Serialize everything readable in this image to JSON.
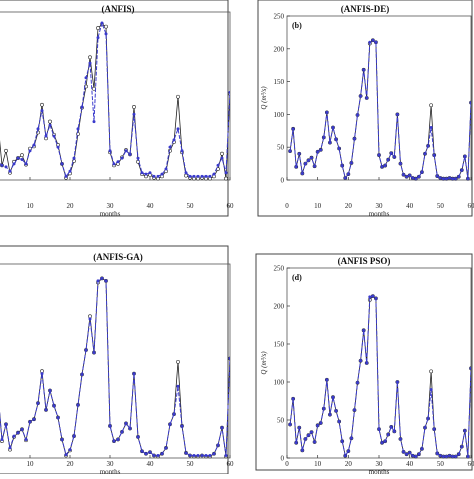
{
  "chart_data": [
    {
      "type": "line",
      "title": "(ANFIS)",
      "panel_label": "",
      "ylabel": "",
      "xlabel": "months",
      "xticks": [
        "10",
        "20",
        "30",
        "40",
        "50",
        "60"
      ],
      "yticks": [],
      "xlim": [
        0,
        60
      ],
      "ylim": [
        0,
        230
      ],
      "colors": {
        "observed": "#222222",
        "model": "#3a3acc"
      },
      "series": [
        {
          "role": "observed",
          "x": [
            1,
            2,
            3,
            4,
            5,
            6,
            7,
            8,
            9,
            10,
            11,
            12,
            13,
            14,
            15,
            16,
            17,
            18,
            19,
            20,
            21,
            22,
            23,
            24,
            25,
            26,
            27,
            28,
            29,
            30,
            31,
            32,
            33,
            34,
            35,
            36,
            37,
            38,
            39,
            40,
            41,
            42,
            43,
            44,
            45,
            46,
            47,
            48,
            49,
            50,
            51,
            52,
            53,
            54,
            55,
            56,
            57,
            58,
            59,
            60
          ],
          "y": [
            44,
            78,
            20,
            40,
            10,
            25,
            30,
            34,
            21,
            43,
            46,
            65,
            103,
            57,
            80,
            62,
            48,
            22,
            3,
            9,
            26,
            63,
            99,
            128,
            168,
            125,
            208,
            213,
            210,
            38,
            20,
            22,
            31,
            41,
            35,
            100,
            25,
            8,
            5,
            7,
            3,
            2,
            5,
            12,
            40,
            52,
            114,
            38,
            6,
            3,
            2,
            2,
            3,
            2,
            2,
            5,
            15,
            36,
            2,
            118
          ]
        },
        {
          "role": "model",
          "x": [
            1,
            2,
            3,
            4,
            5,
            6,
            7,
            8,
            9,
            10,
            11,
            12,
            13,
            14,
            15,
            16,
            17,
            18,
            19,
            20,
            21,
            22,
            23,
            24,
            25,
            26,
            27,
            28,
            29,
            30,
            31,
            32,
            33,
            34,
            35,
            36,
            37,
            38,
            39,
            40,
            41,
            42,
            43,
            44,
            45,
            46,
            47,
            48,
            49,
            50,
            51,
            52,
            53,
            54,
            55,
            56,
            57,
            58,
            59,
            60
          ],
          "y": [
            15,
            25,
            20,
            18,
            12,
            22,
            30,
            28,
            22,
            40,
            48,
            70,
            95,
            60,
            75,
            60,
            45,
            22,
            5,
            12,
            30,
            70,
            100,
            140,
            160,
            80,
            195,
            215,
            200,
            40,
            22,
            25,
            30,
            40,
            35,
            90,
            30,
            10,
            8,
            10,
            5,
            5,
            8,
            15,
            45,
            55,
            70,
            40,
            10,
            5,
            5,
            5,
            5,
            5,
            5,
            8,
            20,
            30,
            10,
            120
          ]
        }
      ]
    },
    {
      "type": "line",
      "title": "(ANFIS-DE)",
      "panel_label": "(b)",
      "ylabel": "Q (m³/s)",
      "xlabel": "months",
      "xticks": [
        "0",
        "10",
        "20",
        "30",
        "40",
        "50",
        "60"
      ],
      "yticks": [
        "0",
        "50",
        "100",
        "150",
        "200",
        "250"
      ],
      "xlim": [
        0,
        60
      ],
      "ylim": [
        0,
        250
      ],
      "colors": {
        "observed": "#222222",
        "model": "#3a3acc"
      },
      "series": [
        {
          "role": "observed",
          "x": [
            1,
            2,
            3,
            4,
            5,
            6,
            7,
            8,
            9,
            10,
            11,
            12,
            13,
            14,
            15,
            16,
            17,
            18,
            19,
            20,
            21,
            22,
            23,
            24,
            25,
            26,
            27,
            28,
            29,
            30,
            31,
            32,
            33,
            34,
            35,
            36,
            37,
            38,
            39,
            40,
            41,
            42,
            43,
            44,
            45,
            46,
            47,
            48,
            49,
            50,
            51,
            52,
            53,
            54,
            55,
            56,
            57,
            58,
            59,
            60
          ],
          "y": [
            44,
            78,
            20,
            40,
            10,
            25,
            30,
            34,
            21,
            43,
            46,
            65,
            103,
            57,
            80,
            62,
            48,
            22,
            3,
            9,
            26,
            63,
            99,
            128,
            168,
            125,
            208,
            213,
            210,
            38,
            20,
            22,
            31,
            41,
            35,
            100,
            25,
            8,
            5,
            7,
            3,
            2,
            5,
            12,
            40,
            52,
            114,
            38,
            6,
            3,
            2,
            2,
            3,
            2,
            2,
            5,
            15,
            36,
            2,
            118
          ]
        },
        {
          "role": "model",
          "x": [
            1,
            2,
            3,
            4,
            5,
            6,
            7,
            8,
            9,
            10,
            11,
            12,
            13,
            14,
            15,
            16,
            17,
            18,
            19,
            20,
            21,
            22,
            23,
            24,
            25,
            26,
            27,
            28,
            29,
            30,
            31,
            32,
            33,
            34,
            35,
            36,
            37,
            38,
            39,
            40,
            41,
            42,
            43,
            44,
            45,
            46,
            47,
            48,
            49,
            50,
            51,
            52,
            53,
            54,
            55,
            56,
            57,
            58,
            59,
            60
          ],
          "y": [
            44,
            78,
            20,
            40,
            10,
            25,
            30,
            34,
            21,
            43,
            46,
            65,
            103,
            57,
            80,
            62,
            48,
            22,
            3,
            9,
            26,
            63,
            99,
            128,
            168,
            125,
            210,
            213,
            210,
            38,
            20,
            22,
            31,
            41,
            35,
            100,
            25,
            8,
            5,
            7,
            3,
            2,
            5,
            12,
            40,
            52,
            80,
            38,
            6,
            3,
            2,
            2,
            3,
            2,
            2,
            5,
            15,
            36,
            2,
            118
          ]
        }
      ]
    },
    {
      "type": "line",
      "title": "(ANFIS-GA)",
      "panel_label": "",
      "ylabel": "",
      "xlabel": "months",
      "xticks": [
        "10",
        "20",
        "30",
        "40",
        "50",
        "60"
      ],
      "yticks": [],
      "xlim": [
        0,
        60
      ],
      "ylim": [
        0,
        230
      ],
      "colors": {
        "observed": "#222222",
        "model": "#3a3acc"
      },
      "series": [
        {
          "role": "observed",
          "x": [
            1,
            2,
            3,
            4,
            5,
            6,
            7,
            8,
            9,
            10,
            11,
            12,
            13,
            14,
            15,
            16,
            17,
            18,
            19,
            20,
            21,
            22,
            23,
            24,
            25,
            26,
            27,
            28,
            29,
            30,
            31,
            32,
            33,
            34,
            35,
            36,
            37,
            38,
            39,
            40,
            41,
            42,
            43,
            44,
            45,
            46,
            47,
            48,
            49,
            50,
            51,
            52,
            53,
            54,
            55,
            56,
            57,
            58,
            59,
            60
          ],
          "y": [
            44,
            78,
            20,
            40,
            10,
            25,
            30,
            34,
            21,
            43,
            46,
            65,
            103,
            57,
            80,
            62,
            48,
            22,
            3,
            9,
            26,
            63,
            99,
            128,
            168,
            125,
            208,
            213,
            210,
            38,
            20,
            22,
            31,
            41,
            35,
            100,
            25,
            8,
            5,
            7,
            3,
            2,
            5,
            12,
            40,
            52,
            114,
            38,
            6,
            3,
            2,
            2,
            3,
            2,
            2,
            5,
            15,
            36,
            2,
            118
          ]
        },
        {
          "role": "model",
          "x": [
            1,
            2,
            3,
            4,
            5,
            6,
            7,
            8,
            9,
            10,
            11,
            12,
            13,
            14,
            15,
            16,
            17,
            18,
            19,
            20,
            21,
            22,
            23,
            24,
            25,
            26,
            27,
            28,
            29,
            30,
            31,
            32,
            33,
            34,
            35,
            36,
            37,
            38,
            39,
            40,
            41,
            42,
            43,
            44,
            45,
            46,
            47,
            48,
            49,
            50,
            51,
            52,
            53,
            54,
            55,
            56,
            57,
            58,
            59,
            60
          ],
          "y": [
            44,
            75,
            22,
            40,
            12,
            26,
            30,
            34,
            22,
            43,
            46,
            65,
            100,
            57,
            80,
            62,
            48,
            22,
            4,
            10,
            26,
            63,
            99,
            128,
            165,
            125,
            210,
            213,
            210,
            38,
            20,
            22,
            31,
            41,
            35,
            100,
            25,
            8,
            5,
            7,
            3,
            3,
            5,
            12,
            40,
            52,
            85,
            38,
            6,
            3,
            3,
            3,
            3,
            3,
            3,
            5,
            15,
            36,
            3,
            118
          ]
        }
      ]
    },
    {
      "type": "line",
      "title": "(ANFIS PSO)",
      "panel_label": "(d)",
      "ylabel": "Q (m³/s)",
      "xlabel": "months",
      "xticks": [
        "0",
        "10",
        "20",
        "30",
        "40",
        "50",
        "60"
      ],
      "yticks": [
        "0",
        "50",
        "100",
        "150",
        "200",
        "250"
      ],
      "xlim": [
        0,
        60
      ],
      "ylim": [
        0,
        250
      ],
      "colors": {
        "observed": "#222222",
        "model": "#3a3acc"
      },
      "series": [
        {
          "role": "observed",
          "x": [
            1,
            2,
            3,
            4,
            5,
            6,
            7,
            8,
            9,
            10,
            11,
            12,
            13,
            14,
            15,
            16,
            17,
            18,
            19,
            20,
            21,
            22,
            23,
            24,
            25,
            26,
            27,
            28,
            29,
            30,
            31,
            32,
            33,
            34,
            35,
            36,
            37,
            38,
            39,
            40,
            41,
            42,
            43,
            44,
            45,
            46,
            47,
            48,
            49,
            50,
            51,
            52,
            53,
            54,
            55,
            56,
            57,
            58,
            59,
            60
          ],
          "y": [
            44,
            78,
            20,
            40,
            10,
            25,
            30,
            34,
            21,
            43,
            46,
            65,
            103,
            57,
            80,
            62,
            48,
            22,
            3,
            9,
            26,
            63,
            99,
            128,
            168,
            125,
            208,
            213,
            210,
            38,
            20,
            22,
            31,
            41,
            35,
            100,
            25,
            8,
            5,
            7,
            3,
            2,
            5,
            12,
            40,
            52,
            114,
            38,
            6,
            3,
            2,
            2,
            3,
            2,
            2,
            5,
            15,
            36,
            2,
            118
          ]
        },
        {
          "role": "model",
          "x": [
            1,
            2,
            3,
            4,
            5,
            6,
            7,
            8,
            9,
            10,
            11,
            12,
            13,
            14,
            15,
            16,
            17,
            18,
            19,
            20,
            21,
            22,
            23,
            24,
            25,
            26,
            27,
            28,
            29,
            30,
            31,
            32,
            33,
            34,
            35,
            36,
            37,
            38,
            39,
            40,
            41,
            42,
            43,
            44,
            45,
            46,
            47,
            48,
            49,
            50,
            51,
            52,
            53,
            54,
            55,
            56,
            57,
            58,
            59,
            60
          ],
          "y": [
            44,
            78,
            20,
            40,
            10,
            25,
            30,
            34,
            21,
            43,
            46,
            65,
            103,
            57,
            80,
            62,
            48,
            22,
            3,
            9,
            26,
            63,
            99,
            128,
            168,
            125,
            212,
            213,
            210,
            38,
            20,
            22,
            31,
            41,
            35,
            100,
            25,
            8,
            5,
            7,
            3,
            2,
            5,
            12,
            40,
            52,
            90,
            38,
            6,
            3,
            2,
            2,
            3,
            2,
            2,
            5,
            15,
            36,
            2,
            118
          ]
        }
      ]
    }
  ]
}
